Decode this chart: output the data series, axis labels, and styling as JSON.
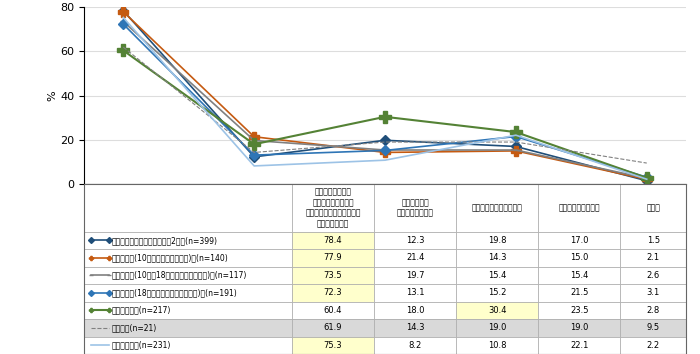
{
  "categories": [
    "自分で交通手段、\n宿泊施設、旅先での\nアミューズメント体験等を\n個別に手配する",
    "旅行代理店に\nプランを依頼する",
    "パッケージツアーを選ぶ",
    "フリーツアーを選ぶ",
    "その他"
  ],
  "series": [
    {
      "label": "夫婦や恋人、パートナーとの2人で(n=399)",
      "values": [
        78.4,
        12.3,
        19.8,
        17.0,
        1.5
      ],
      "color": "#1f4e79",
      "marker": "D",
      "linestyle": "-",
      "linewidth": 1.2,
      "markersize": 5
    },
    {
      "label": "家族・親族(10歳未満の子供を含む)と(n=140)",
      "values": [
        77.9,
        21.4,
        14.3,
        15.0,
        2.1
      ],
      "color": "#c55a11",
      "marker": "+",
      "linestyle": "-",
      "linewidth": 1.2,
      "markersize": 7
    },
    {
      "label": "家族・親族(10歳～18歳未満の子供を含む)と(n=117)",
      "values": [
        73.5,
        19.7,
        15.4,
        15.4,
        2.6
      ],
      "color": "#808080",
      "marker": "-",
      "linestyle": "-",
      "linewidth": 1.2,
      "markersize": 5
    },
    {
      "label": "家族・親族(18歳未満の子供を含まない)と(n=191)",
      "values": [
        72.3,
        13.1,
        15.2,
        21.5,
        3.1
      ],
      "color": "#2e75b6",
      "marker": "D",
      "linestyle": "-",
      "linewidth": 1.2,
      "markersize": 5
    },
    {
      "label": "友人・知人と(n=217)",
      "values": [
        60.4,
        18.0,
        30.4,
        23.5,
        2.8
      ],
      "color": "#548235",
      "marker": "+",
      "linestyle": "-",
      "linewidth": 1.5,
      "markersize": 8
    },
    {
      "label": "ペットと(n=21)",
      "values": [
        61.9,
        14.3,
        19.0,
        19.0,
        9.5
      ],
      "color": "#808080",
      "marker": null,
      "linestyle": "--",
      "linewidth": 0.8,
      "markersize": 3
    },
    {
      "label": "自分ひとりで(n=231)",
      "values": [
        75.3,
        8.2,
        10.8,
        22.1,
        2.2
      ],
      "color": "#9dc3e6",
      "marker": "none",
      "linestyle": "-",
      "linewidth": 1.2,
      "markersize": 4
    }
  ],
  "ylim": [
    0,
    80
  ],
  "yticks": [
    0,
    20,
    40,
    60,
    80
  ],
  "ylabel": "%",
  "table_data": [
    [
      "78.4",
      "12.3",
      "19.8",
      "17.0",
      "1.5"
    ],
    [
      "77.9",
      "21.4",
      "14.3",
      "15.0",
      "2.1"
    ],
    [
      "73.5",
      "19.7",
      "15.4",
      "15.4",
      "2.6"
    ],
    [
      "72.3",
      "13.1",
      "15.2",
      "21.5",
      "3.1"
    ],
    [
      "60.4",
      "18.0",
      "30.4",
      "23.5",
      "2.8"
    ],
    [
      "61.9",
      "14.3",
      "19.0",
      "19.0",
      "9.5"
    ],
    [
      "75.3",
      "8.2",
      "10.8",
      "22.1",
      "2.2"
    ]
  ],
  "highlight_col0": [
    true,
    true,
    true,
    true,
    false,
    false,
    true
  ],
  "highlight_col2": [
    false,
    false,
    false,
    false,
    true,
    false,
    false
  ],
  "row_gray": [
    false,
    false,
    false,
    false,
    false,
    true,
    false
  ],
  "row_light_yellow": "#ffffcc",
  "row_gray_color": "#d9d9d9",
  "row_highlight_col2_color": "#ffffcc",
  "line_colors": [
    "#1f4e79",
    "#c55a11",
    "#808080",
    "#2e75b6",
    "#548235",
    "#808080",
    "#9dc3e6"
  ],
  "legend_colors": [
    "#1f4e79",
    "#c55a11",
    "#808080",
    "#2e75b6",
    "#548235",
    "#808080",
    "#9dc3e6"
  ]
}
